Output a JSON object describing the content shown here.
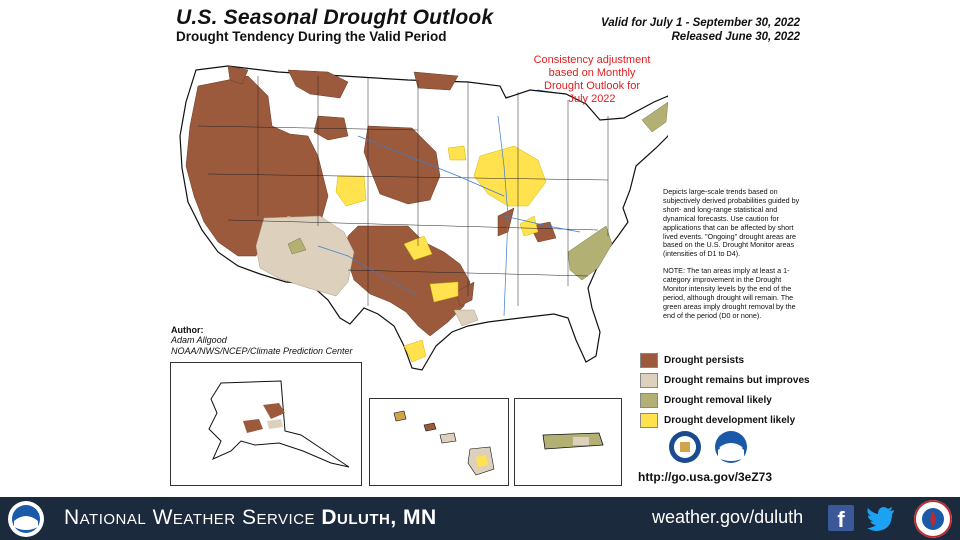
{
  "header": {
    "title": "U.S. Seasonal Drought Outlook",
    "subtitle": "Drought Tendency During the Valid Period",
    "valid_line": "Valid for July 1 - September 30, 2022",
    "released_line": "Released June 30, 2022"
  },
  "consistency_note": {
    "line1": "Consistency adjustment",
    "line2": "based on Monthly",
    "line3": "Drought Outlook for",
    "line4": "July 2022"
  },
  "description": {
    "para1": "Depicts large-scale trends based on subjectively derived probabilities guided by short- and long-range statistical and dynamical forecasts. Use caution for applications that can be affected by short lived events. \"Ongoing\" drought areas are based on the U.S. Drought Monitor areas (intensities of D1 to D4).",
    "para2": "NOTE: The tan areas imply at least a 1-category improvement in the Drought Monitor intensity levels by the end of the period, although drought will remain. The green areas imply drought removal by the end of the period (D0 or none)."
  },
  "author": {
    "label": "Author:",
    "name": "Adam Allgood",
    "org": "NOAA/NWS/NCEP/Climate Prediction Center"
  },
  "legend": [
    {
      "label": "Drought persists",
      "color": "#9c5a3c"
    },
    {
      "label": "Drought remains but improves",
      "color": "#ddd1bd"
    },
    {
      "label": "Drought removal likely",
      "color": "#b3b074"
    },
    {
      "label": "Drought development likely",
      "color": "#ffe24d"
    }
  ],
  "url": "http://go.usa.gov/3eZ73",
  "footer": {
    "office_prefix": "National Weather Service",
    "office_name": "Duluth, MN",
    "website": "weather.gov/duluth",
    "background_color": "#1c2a3d"
  },
  "colors": {
    "water": "#a6dcf5",
    "state_lines": "#222222",
    "rivers": "#3a7bd5"
  },
  "icons": [
    "noaa-logo-icon",
    "doc-seal-icon",
    "nws-logo-icon",
    "facebook-icon",
    "twitter-icon",
    "nws-seal-icon"
  ]
}
